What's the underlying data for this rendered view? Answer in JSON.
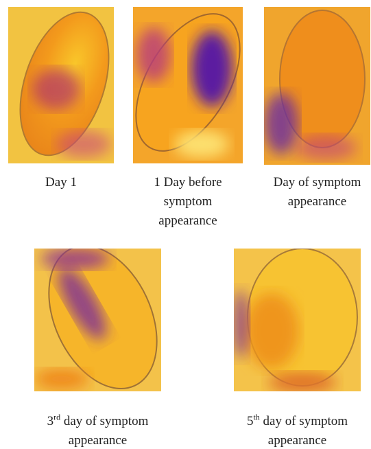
{
  "panels": [
    {
      "caption": "Day 1"
    },
    {
      "caption": "1 Day before symptom appearance"
    },
    {
      "caption": "Day of symptom appearance"
    },
    {
      "ordinal": "3",
      "suffix": "rd",
      "caption": " day of symptom appearance"
    },
    {
      "ordinal": "5",
      "suffix": "th",
      "caption": " day of symptom appearance"
    }
  ]
}
